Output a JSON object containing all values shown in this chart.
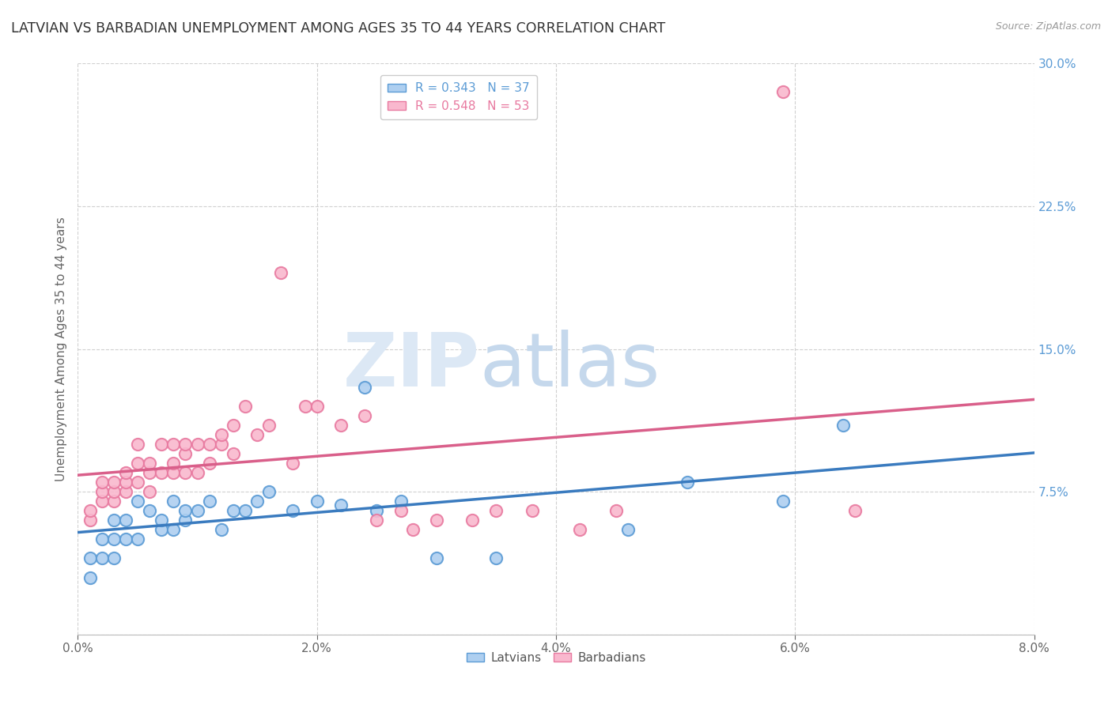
{
  "title": "LATVIAN VS BARBADIAN UNEMPLOYMENT AMONG AGES 35 TO 44 YEARS CORRELATION CHART",
  "source": "Source: ZipAtlas.com",
  "ylabel": "Unemployment Among Ages 35 to 44 years",
  "xlim": [
    0.0,
    0.08
  ],
  "ylim": [
    0.0,
    0.3
  ],
  "xticks": [
    0.0,
    0.02,
    0.04,
    0.06,
    0.08
  ],
  "xticklabels": [
    "0.0%",
    "2.0%",
    "4.0%",
    "6.0%",
    "8.0%"
  ],
  "yticks_right": [
    0.0,
    0.075,
    0.15,
    0.225,
    0.3
  ],
  "yticklabels_right": [
    "",
    "7.5%",
    "15.0%",
    "22.5%",
    "30.0%"
  ],
  "latvian_fill_color": "#aecff0",
  "latvian_edge_color": "#5b9bd5",
  "barbadian_fill_color": "#f9b8ce",
  "barbadian_edge_color": "#e87aa0",
  "latvian_line_color": "#3a7bbf",
  "barbadian_line_color": "#d95f8a",
  "R_latvian": 0.343,
  "N_latvian": 37,
  "R_barbadian": 0.548,
  "N_barbadian": 53,
  "latvians_x": [
    0.001,
    0.001,
    0.002,
    0.002,
    0.003,
    0.003,
    0.003,
    0.004,
    0.004,
    0.005,
    0.005,
    0.006,
    0.007,
    0.007,
    0.008,
    0.008,
    0.009,
    0.009,
    0.01,
    0.011,
    0.012,
    0.013,
    0.014,
    0.015,
    0.016,
    0.018,
    0.02,
    0.022,
    0.024,
    0.025,
    0.027,
    0.03,
    0.035,
    0.046,
    0.051,
    0.059,
    0.064
  ],
  "latvians_y": [
    0.03,
    0.04,
    0.04,
    0.05,
    0.04,
    0.05,
    0.06,
    0.05,
    0.06,
    0.05,
    0.07,
    0.065,
    0.055,
    0.06,
    0.055,
    0.07,
    0.06,
    0.065,
    0.065,
    0.07,
    0.055,
    0.065,
    0.065,
    0.07,
    0.075,
    0.065,
    0.07,
    0.068,
    0.13,
    0.065,
    0.07,
    0.04,
    0.04,
    0.055,
    0.08,
    0.07,
    0.11
  ],
  "barbadians_x": [
    0.001,
    0.001,
    0.002,
    0.002,
    0.002,
    0.003,
    0.003,
    0.003,
    0.004,
    0.004,
    0.004,
    0.005,
    0.005,
    0.005,
    0.006,
    0.006,
    0.006,
    0.007,
    0.007,
    0.008,
    0.008,
    0.008,
    0.009,
    0.009,
    0.009,
    0.01,
    0.01,
    0.011,
    0.011,
    0.012,
    0.012,
    0.013,
    0.013,
    0.014,
    0.015,
    0.016,
    0.017,
    0.018,
    0.019,
    0.02,
    0.022,
    0.024,
    0.025,
    0.027,
    0.028,
    0.03,
    0.033,
    0.035,
    0.038,
    0.042,
    0.045,
    0.059,
    0.065
  ],
  "barbadians_y": [
    0.06,
    0.065,
    0.07,
    0.075,
    0.08,
    0.07,
    0.075,
    0.08,
    0.075,
    0.08,
    0.085,
    0.08,
    0.09,
    0.1,
    0.075,
    0.085,
    0.09,
    0.085,
    0.1,
    0.085,
    0.09,
    0.1,
    0.085,
    0.095,
    0.1,
    0.085,
    0.1,
    0.09,
    0.1,
    0.1,
    0.105,
    0.095,
    0.11,
    0.12,
    0.105,
    0.11,
    0.19,
    0.09,
    0.12,
    0.12,
    0.11,
    0.115,
    0.06,
    0.065,
    0.055,
    0.06,
    0.06,
    0.065,
    0.065,
    0.055,
    0.065,
    0.285,
    0.065
  ],
  "watermark_zip": "ZIP",
  "watermark_atlas": "atlas",
  "background_color": "#ffffff",
  "grid_color": "#d0d0d0"
}
